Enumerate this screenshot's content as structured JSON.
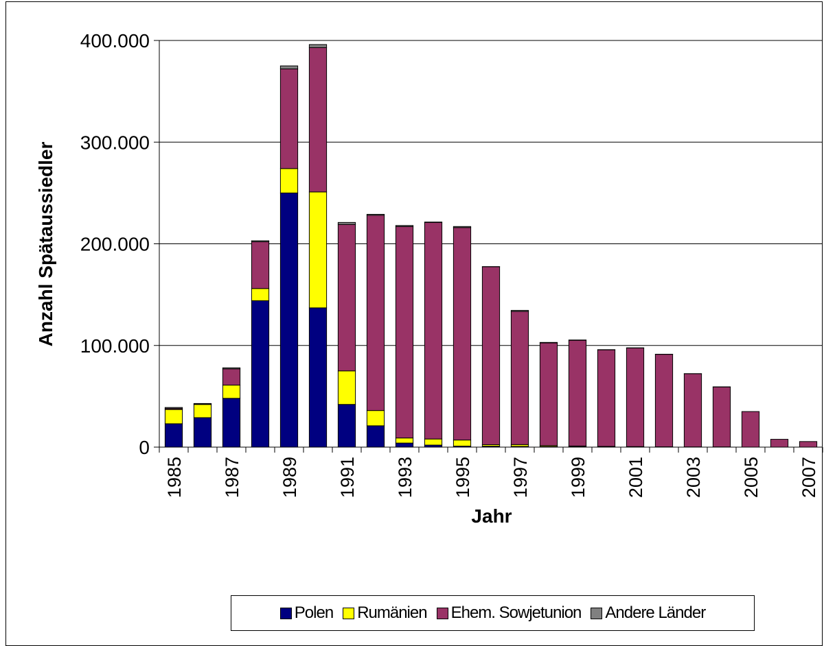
{
  "chart_data": {
    "type": "bar",
    "stacked": true,
    "title": "",
    "xlabel": "Jahr",
    "ylabel": "Anzahl Spätaussiedler",
    "ylim": [
      0,
      400000
    ],
    "yticks": [
      0,
      100000,
      200000,
      300000,
      400000
    ],
    "ytick_labels": [
      "0",
      "100.000",
      "200.000",
      "300.000",
      "400.000"
    ],
    "grid": "horizontal",
    "legend_position": "bottom",
    "categories": [
      "1985",
      "1986",
      "1987",
      "1988",
      "1989",
      "1990",
      "1991",
      "1992",
      "1993",
      "1994",
      "1995",
      "1996",
      "1997",
      "1998",
      "1999",
      "2000",
      "2001",
      "2002",
      "2003",
      "2004",
      "2005",
      "2006",
      "2007"
    ],
    "xtick_labels": [
      "1985",
      "",
      "1987",
      "",
      "1989",
      "",
      "1991",
      "",
      "1993",
      "",
      "1995",
      "",
      "1997",
      "",
      "1999",
      "",
      "2001",
      "",
      "2003",
      "",
      "2005",
      "",
      "2007"
    ],
    "series": [
      {
        "name": "Polen",
        "color": "#000080",
        "values": [
          23000,
          29000,
          48000,
          144000,
          250000,
          137000,
          42000,
          21000,
          4000,
          2000,
          1000,
          900,
          700,
          500,
          400,
          300,
          200,
          100,
          100,
          100,
          0,
          0,
          0
        ]
      },
      {
        "name": "Rumänien",
        "color": "#FFFF00",
        "values": [
          14000,
          13000,
          13000,
          12000,
          24000,
          114000,
          33000,
          15000,
          5000,
          6000,
          6000,
          1500,
          1800,
          1000,
          700,
          400,
          300,
          200,
          100,
          100,
          0,
          0,
          0
        ]
      },
      {
        "name": "Ehem. Sowjetunion",
        "color": "#993366",
        "values": [
          1000,
          400,
          16000,
          46000,
          98000,
          142000,
          144000,
          192000,
          208000,
          213000,
          209000,
          175000,
          131000,
          101000,
          104000,
          95000,
          97000,
          91000,
          72000,
          59000,
          35000,
          7700,
          5500
        ]
      },
      {
        "name": "Andere Länder",
        "color": "#808080",
        "values": [
          1000,
          500,
          1000,
          1000,
          3000,
          3000,
          2000,
          1000,
          1000,
          400,
          1000,
          200,
          1000,
          500,
          300,
          200,
          200,
          100,
          100,
          100,
          0,
          0,
          0
        ]
      }
    ]
  }
}
